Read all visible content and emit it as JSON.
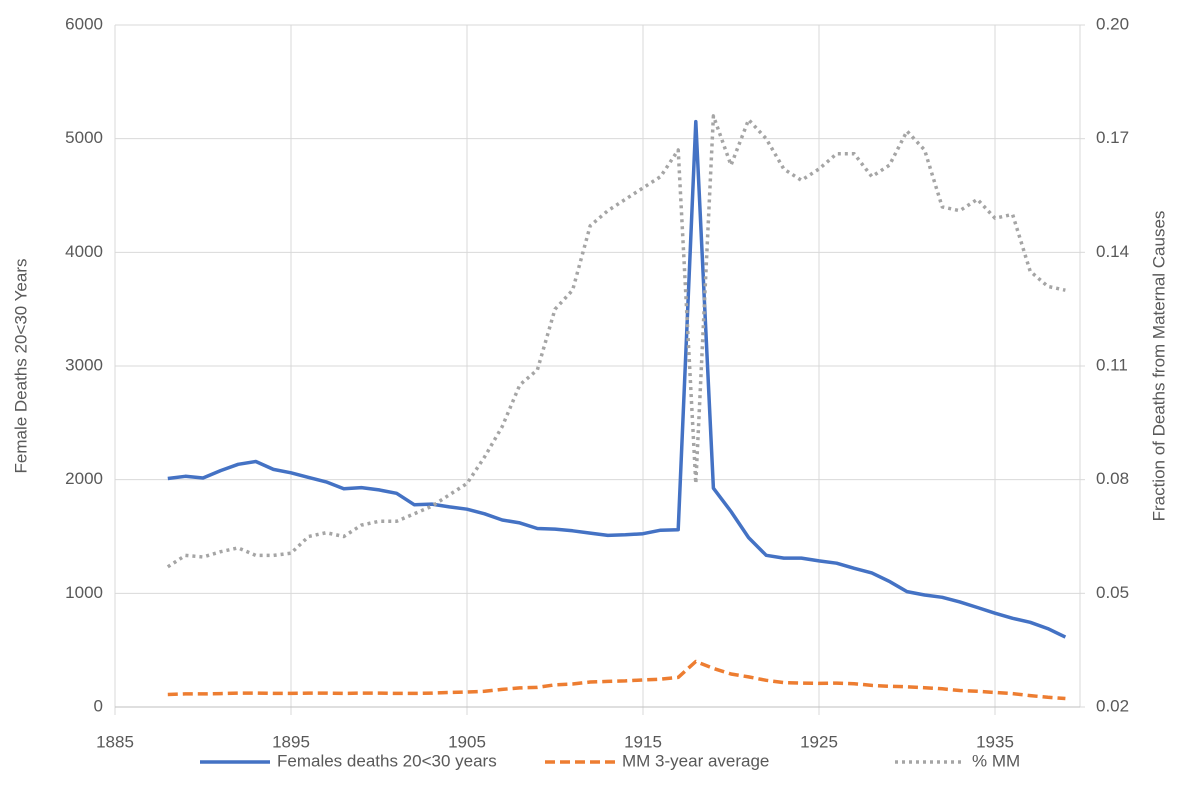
{
  "chart_data": {
    "type": "line",
    "x": [
      1888,
      1889,
      1890,
      1891,
      1892,
      1893,
      1894,
      1895,
      1896,
      1897,
      1898,
      1899,
      1900,
      1901,
      1902,
      1903,
      1904,
      1905,
      1906,
      1907,
      1908,
      1909,
      1910,
      1911,
      1912,
      1913,
      1914,
      1915,
      1916,
      1917,
      1918,
      1919,
      1920,
      1921,
      1922,
      1923,
      1924,
      1925,
      1926,
      1927,
      1928,
      1929,
      1930,
      1931,
      1932,
      1933,
      1934,
      1935,
      1936,
      1937,
      1938,
      1939
    ],
    "series": [
      {
        "name": "Females deaths 20<30 years",
        "color": "#4472c4",
        "style": "solid",
        "values": [
          2010,
          2030,
          2015,
          2080,
          2135,
          2160,
          2090,
          2060,
          2020,
          1980,
          1920,
          1930,
          1910,
          1880,
          1780,
          1785,
          1760,
          1740,
          1700,
          1645,
          1620,
          1570,
          1565,
          1550,
          1530,
          1510,
          1515,
          1525,
          1555,
          1560,
          5150,
          1925,
          1720,
          1490,
          1335,
          1310,
          1310,
          1285,
          1265,
          1220,
          1180,
          1105,
          1015,
          985,
          965,
          925,
          875,
          825,
          780,
          745,
          690,
          615
        ]
      },
      {
        "name": "MM 3-year average",
        "color": "#ed7d31",
        "style": "dashed",
        "values": [
          110,
          115,
          115,
          118,
          122,
          122,
          120,
          120,
          122,
          122,
          120,
          122,
          122,
          120,
          120,
          122,
          128,
          132,
          138,
          155,
          168,
          172,
          195,
          202,
          220,
          225,
          230,
          238,
          245,
          260,
          400,
          340,
          290,
          265,
          235,
          215,
          210,
          208,
          210,
          205,
          190,
          182,
          178,
          170,
          160,
          145,
          138,
          128,
          118,
          100,
          85,
          75
        ]
      },
      {
        "name": "% MM",
        "color": "#a5a5a5",
        "style": "dotted",
        "axis": "y2",
        "values": [
          0.057,
          0.06,
          0.0596,
          0.061,
          0.062,
          0.06,
          0.06,
          0.0606,
          0.065,
          0.066,
          0.065,
          0.068,
          0.069,
          0.069,
          0.071,
          0.073,
          0.076,
          0.079,
          0.086,
          0.094,
          0.105,
          0.109,
          0.125,
          0.13,
          0.147,
          0.151,
          0.154,
          0.157,
          0.16,
          0.167,
          0.079,
          0.176,
          0.163,
          0.175,
          0.17,
          0.162,
          0.159,
          0.162,
          0.166,
          0.166,
          0.16,
          0.163,
          0.172,
          0.167,
          0.152,
          0.151,
          0.154,
          0.149,
          0.15,
          0.135,
          0.131,
          0.13
        ]
      }
    ],
    "xlim": [
      1885,
      1940
    ],
    "xticks": [
      1885,
      1895,
      1905,
      1915,
      1925,
      1935
    ],
    "ylim": [
      0,
      6000
    ],
    "yticks": [
      0,
      1000,
      2000,
      3000,
      4000,
      5000,
      6000
    ],
    "y2lim": [
      0.02,
      0.2
    ],
    "y2ticks": [
      0.02,
      0.05,
      0.08,
      0.11,
      0.14,
      0.17,
      {
        "value": 0.2,
        "label": "0.20"
      }
    ],
    "ylabel": "Female Deaths 20<30 Years",
    "y2label": "Fraction of Deaths from Maternal Causes",
    "grid": true,
    "legend": "bottom"
  }
}
